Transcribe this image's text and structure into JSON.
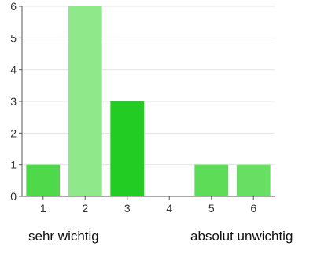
{
  "chart_data": {
    "type": "bar",
    "categories": [
      "1",
      "2",
      "3",
      "4",
      "5",
      "6"
    ],
    "values": [
      1,
      6,
      3,
      0,
      1,
      1
    ],
    "bar_colors": [
      "#4fd84a",
      "#8fe88a",
      "#22cc22",
      "#4fd84a",
      "#5ddc58",
      "#68df63"
    ],
    "ylim": [
      0,
      6
    ],
    "yticks": [
      0,
      1,
      2,
      3,
      4,
      5,
      6
    ],
    "grid": true,
    "title": "",
    "xlabel": "",
    "ylabel": ""
  },
  "scale_labels": {
    "left": "sehr wichtig",
    "right": "absolut unwichtig"
  }
}
